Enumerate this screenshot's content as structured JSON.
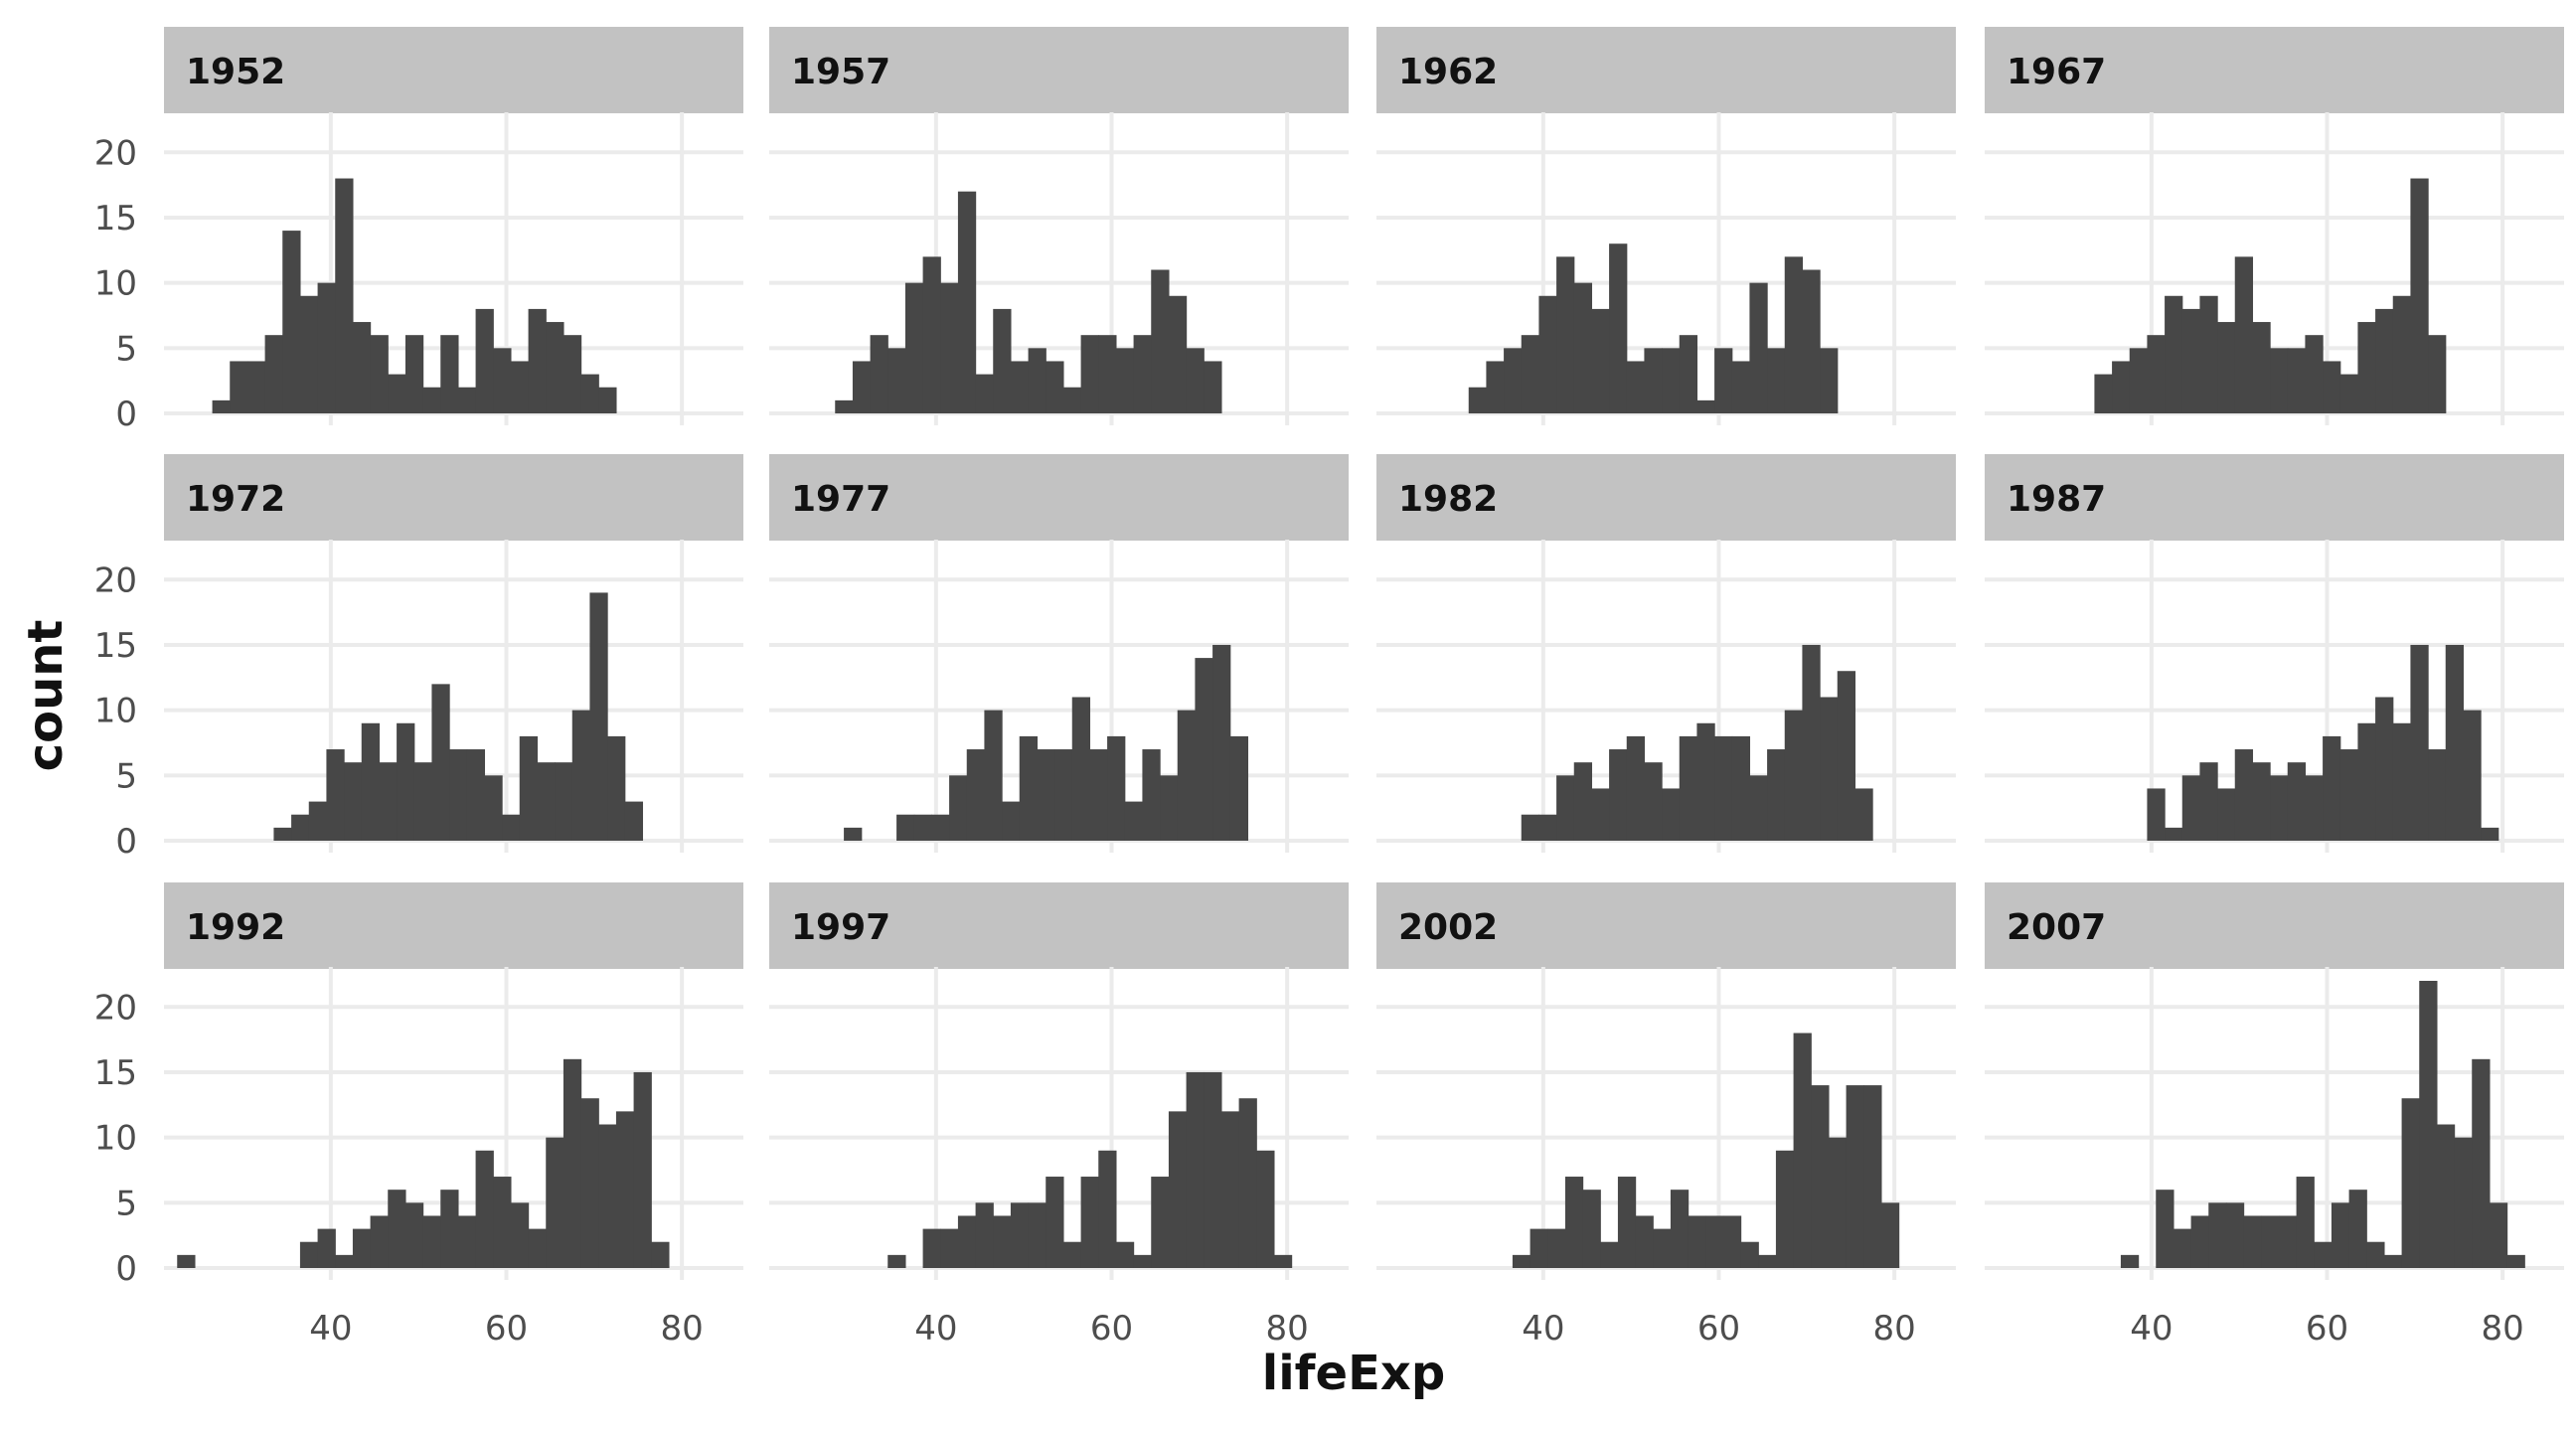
{
  "chart_data": {
    "type": "histogram",
    "facet_by": "year",
    "xlabel": "lifeExp",
    "ylabel": "count",
    "x_ticks": [
      40,
      60,
      80
    ],
    "y_ticks": [
      0,
      5,
      10,
      15,
      20
    ],
    "xlim": [
      21,
      87
    ],
    "ylim": [
      0,
      22
    ],
    "facet_ncol": 4,
    "grid": true,
    "theme": "minimal",
    "colors": {
      "bar": "#474747",
      "strip": "#c2c2c2",
      "grid": "#ebebeb",
      "strip_text": "#111111",
      "tick_text": "#4d4d4d"
    },
    "panels": [
      {
        "year": "1952",
        "bars": [
          {
            "x": 27.5,
            "count": 1
          },
          {
            "x": 29.5,
            "count": 4
          },
          {
            "x": 31.5,
            "count": 4
          },
          {
            "x": 33.5,
            "count": 6
          },
          {
            "x": 35.5,
            "count": 14
          },
          {
            "x": 37.5,
            "count": 9
          },
          {
            "x": 39.5,
            "count": 10
          },
          {
            "x": 41.5,
            "count": 18
          },
          {
            "x": 43.5,
            "count": 7
          },
          {
            "x": 45.5,
            "count": 6
          },
          {
            "x": 47.5,
            "count": 3
          },
          {
            "x": 49.5,
            "count": 6
          },
          {
            "x": 51.5,
            "count": 2
          },
          {
            "x": 53.5,
            "count": 6
          },
          {
            "x": 55.5,
            "count": 2
          },
          {
            "x": 57.5,
            "count": 8
          },
          {
            "x": 59.5,
            "count": 5
          },
          {
            "x": 61.5,
            "count": 4
          },
          {
            "x": 63.5,
            "count": 8
          },
          {
            "x": 65.5,
            "count": 7
          },
          {
            "x": 67.5,
            "count": 6
          },
          {
            "x": 69.5,
            "count": 3
          },
          {
            "x": 71.5,
            "count": 2
          }
        ]
      },
      {
        "year": "1957",
        "bars": [
          {
            "x": 29.5,
            "count": 1
          },
          {
            "x": 31.5,
            "count": 4
          },
          {
            "x": 33.5,
            "count": 6
          },
          {
            "x": 35.5,
            "count": 5
          },
          {
            "x": 37.5,
            "count": 10
          },
          {
            "x": 39.5,
            "count": 12
          },
          {
            "x": 41.5,
            "count": 10
          },
          {
            "x": 43.5,
            "count": 17
          },
          {
            "x": 45.5,
            "count": 3
          },
          {
            "x": 47.5,
            "count": 8
          },
          {
            "x": 49.5,
            "count": 4
          },
          {
            "x": 51.5,
            "count": 5
          },
          {
            "x": 53.5,
            "count": 4
          },
          {
            "x": 55.5,
            "count": 2
          },
          {
            "x": 57.5,
            "count": 6
          },
          {
            "x": 59.5,
            "count": 6
          },
          {
            "x": 61.5,
            "count": 5
          },
          {
            "x": 63.5,
            "count": 6
          },
          {
            "x": 65.5,
            "count": 11
          },
          {
            "x": 67.5,
            "count": 9
          },
          {
            "x": 69.5,
            "count": 5
          },
          {
            "x": 71.5,
            "count": 4
          }
        ]
      },
      {
        "year": "1962",
        "bars": [
          {
            "x": 32.5,
            "count": 2
          },
          {
            "x": 34.5,
            "count": 4
          },
          {
            "x": 36.5,
            "count": 5
          },
          {
            "x": 38.5,
            "count": 6
          },
          {
            "x": 40.5,
            "count": 9
          },
          {
            "x": 42.5,
            "count": 12
          },
          {
            "x": 44.5,
            "count": 10
          },
          {
            "x": 46.5,
            "count": 8
          },
          {
            "x": 48.5,
            "count": 13
          },
          {
            "x": 50.5,
            "count": 4
          },
          {
            "x": 52.5,
            "count": 5
          },
          {
            "x": 54.5,
            "count": 5
          },
          {
            "x": 56.5,
            "count": 6
          },
          {
            "x": 58.5,
            "count": 1
          },
          {
            "x": 60.5,
            "count": 5
          },
          {
            "x": 62.5,
            "count": 4
          },
          {
            "x": 64.5,
            "count": 10
          },
          {
            "x": 66.5,
            "count": 5
          },
          {
            "x": 68.5,
            "count": 12
          },
          {
            "x": 70.5,
            "count": 11
          },
          {
            "x": 72.5,
            "count": 5
          }
        ]
      },
      {
        "year": "1967",
        "bars": [
          {
            "x": 34.5,
            "count": 3
          },
          {
            "x": 36.5,
            "count": 4
          },
          {
            "x": 38.5,
            "count": 5
          },
          {
            "x": 40.5,
            "count": 6
          },
          {
            "x": 42.5,
            "count": 9
          },
          {
            "x": 44.5,
            "count": 8
          },
          {
            "x": 46.5,
            "count": 9
          },
          {
            "x": 48.5,
            "count": 7
          },
          {
            "x": 50.5,
            "count": 12
          },
          {
            "x": 52.5,
            "count": 7
          },
          {
            "x": 54.5,
            "count": 5
          },
          {
            "x": 56.5,
            "count": 5
          },
          {
            "x": 58.5,
            "count": 6
          },
          {
            "x": 60.5,
            "count": 4
          },
          {
            "x": 62.5,
            "count": 3
          },
          {
            "x": 64.5,
            "count": 7
          },
          {
            "x": 66.5,
            "count": 8
          },
          {
            "x": 68.5,
            "count": 9
          },
          {
            "x": 70.5,
            "count": 18
          },
          {
            "x": 72.5,
            "count": 6
          }
        ]
      },
      {
        "year": "1972",
        "bars": [
          {
            "x": 34.5,
            "count": 1
          },
          {
            "x": 36.5,
            "count": 2
          },
          {
            "x": 38.5,
            "count": 3
          },
          {
            "x": 40.5,
            "count": 7
          },
          {
            "x": 42.5,
            "count": 6
          },
          {
            "x": 44.5,
            "count": 9
          },
          {
            "x": 46.5,
            "count": 6
          },
          {
            "x": 48.5,
            "count": 9
          },
          {
            "x": 50.5,
            "count": 6
          },
          {
            "x": 52.5,
            "count": 12
          },
          {
            "x": 54.5,
            "count": 7
          },
          {
            "x": 56.5,
            "count": 7
          },
          {
            "x": 58.5,
            "count": 5
          },
          {
            "x": 60.5,
            "count": 2
          },
          {
            "x": 62.5,
            "count": 8
          },
          {
            "x": 64.5,
            "count": 6
          },
          {
            "x": 66.5,
            "count": 6
          },
          {
            "x": 68.5,
            "count": 10
          },
          {
            "x": 70.5,
            "count": 19
          },
          {
            "x": 72.5,
            "count": 8
          },
          {
            "x": 74.5,
            "count": 3
          }
        ]
      },
      {
        "year": "1977",
        "bars": [
          {
            "x": 30.5,
            "count": 1
          },
          {
            "x": 36.5,
            "count": 2
          },
          {
            "x": 38.5,
            "count": 2
          },
          {
            "x": 40.5,
            "count": 2
          },
          {
            "x": 42.5,
            "count": 5
          },
          {
            "x": 44.5,
            "count": 7
          },
          {
            "x": 46.5,
            "count": 10
          },
          {
            "x": 48.5,
            "count": 3
          },
          {
            "x": 50.5,
            "count": 8
          },
          {
            "x": 52.5,
            "count": 7
          },
          {
            "x": 54.5,
            "count": 7
          },
          {
            "x": 56.5,
            "count": 11
          },
          {
            "x": 58.5,
            "count": 7
          },
          {
            "x": 60.5,
            "count": 8
          },
          {
            "x": 62.5,
            "count": 3
          },
          {
            "x": 64.5,
            "count": 7
          },
          {
            "x": 66.5,
            "count": 5
          },
          {
            "x": 68.5,
            "count": 10
          },
          {
            "x": 70.5,
            "count": 14
          },
          {
            "x": 72.5,
            "count": 15
          },
          {
            "x": 74.5,
            "count": 8
          }
        ]
      },
      {
        "year": "1982",
        "bars": [
          {
            "x": 38.5,
            "count": 2
          },
          {
            "x": 40.5,
            "count": 2
          },
          {
            "x": 42.5,
            "count": 5
          },
          {
            "x": 44.5,
            "count": 6
          },
          {
            "x": 46.5,
            "count": 4
          },
          {
            "x": 48.5,
            "count": 7
          },
          {
            "x": 50.5,
            "count": 8
          },
          {
            "x": 52.5,
            "count": 6
          },
          {
            "x": 54.5,
            "count": 4
          },
          {
            "x": 56.5,
            "count": 8
          },
          {
            "x": 58.5,
            "count": 9
          },
          {
            "x": 60.5,
            "count": 8
          },
          {
            "x": 62.5,
            "count": 8
          },
          {
            "x": 64.5,
            "count": 5
          },
          {
            "x": 66.5,
            "count": 7
          },
          {
            "x": 68.5,
            "count": 10
          },
          {
            "x": 70.5,
            "count": 15
          },
          {
            "x": 72.5,
            "count": 11
          },
          {
            "x": 74.5,
            "count": 13
          },
          {
            "x": 76.5,
            "count": 4
          }
        ]
      },
      {
        "year": "1987",
        "bars": [
          {
            "x": 40.5,
            "count": 4
          },
          {
            "x": 42.5,
            "count": 1
          },
          {
            "x": 44.5,
            "count": 5
          },
          {
            "x": 46.5,
            "count": 6
          },
          {
            "x": 48.5,
            "count": 4
          },
          {
            "x": 50.5,
            "count": 7
          },
          {
            "x": 52.5,
            "count": 6
          },
          {
            "x": 54.5,
            "count": 5
          },
          {
            "x": 56.5,
            "count": 6
          },
          {
            "x": 58.5,
            "count": 5
          },
          {
            "x": 60.5,
            "count": 8
          },
          {
            "x": 62.5,
            "count": 7
          },
          {
            "x": 64.5,
            "count": 9
          },
          {
            "x": 66.5,
            "count": 11
          },
          {
            "x": 68.5,
            "count": 9
          },
          {
            "x": 70.5,
            "count": 15
          },
          {
            "x": 72.5,
            "count": 7
          },
          {
            "x": 74.5,
            "count": 15
          },
          {
            "x": 76.5,
            "count": 10
          },
          {
            "x": 78.5,
            "count": 1
          }
        ]
      },
      {
        "year": "1992",
        "bars": [
          {
            "x": 23.5,
            "count": 1
          },
          {
            "x": 37.5,
            "count": 2
          },
          {
            "x": 39.5,
            "count": 3
          },
          {
            "x": 41.5,
            "count": 1
          },
          {
            "x": 43.5,
            "count": 3
          },
          {
            "x": 45.5,
            "count": 4
          },
          {
            "x": 47.5,
            "count": 6
          },
          {
            "x": 49.5,
            "count": 5
          },
          {
            "x": 51.5,
            "count": 4
          },
          {
            "x": 53.5,
            "count": 6
          },
          {
            "x": 55.5,
            "count": 4
          },
          {
            "x": 57.5,
            "count": 9
          },
          {
            "x": 59.5,
            "count": 7
          },
          {
            "x": 61.5,
            "count": 5
          },
          {
            "x": 63.5,
            "count": 3
          },
          {
            "x": 65.5,
            "count": 10
          },
          {
            "x": 67.5,
            "count": 16
          },
          {
            "x": 69.5,
            "count": 13
          },
          {
            "x": 71.5,
            "count": 11
          },
          {
            "x": 73.5,
            "count": 12
          },
          {
            "x": 75.5,
            "count": 15
          },
          {
            "x": 77.5,
            "count": 2
          }
        ]
      },
      {
        "year": "1997",
        "bars": [
          {
            "x": 35.5,
            "count": 1
          },
          {
            "x": 39.5,
            "count": 3
          },
          {
            "x": 41.5,
            "count": 3
          },
          {
            "x": 43.5,
            "count": 4
          },
          {
            "x": 45.5,
            "count": 5
          },
          {
            "x": 47.5,
            "count": 4
          },
          {
            "x": 49.5,
            "count": 5
          },
          {
            "x": 51.5,
            "count": 5
          },
          {
            "x": 53.5,
            "count": 7
          },
          {
            "x": 55.5,
            "count": 2
          },
          {
            "x": 57.5,
            "count": 7
          },
          {
            "x": 59.5,
            "count": 9
          },
          {
            "x": 61.5,
            "count": 2
          },
          {
            "x": 63.5,
            "count": 1
          },
          {
            "x": 65.5,
            "count": 7
          },
          {
            "x": 67.5,
            "count": 12
          },
          {
            "x": 69.5,
            "count": 15
          },
          {
            "x": 71.5,
            "count": 15
          },
          {
            "x": 73.5,
            "count": 12
          },
          {
            "x": 75.5,
            "count": 13
          },
          {
            "x": 77.5,
            "count": 9
          },
          {
            "x": 79.5,
            "count": 1
          }
        ]
      },
      {
        "year": "2002",
        "bars": [
          {
            "x": 37.5,
            "count": 1
          },
          {
            "x": 39.5,
            "count": 3
          },
          {
            "x": 41.5,
            "count": 3
          },
          {
            "x": 43.5,
            "count": 7
          },
          {
            "x": 45.5,
            "count": 6
          },
          {
            "x": 47.5,
            "count": 2
          },
          {
            "x": 49.5,
            "count": 7
          },
          {
            "x": 51.5,
            "count": 4
          },
          {
            "x": 53.5,
            "count": 3
          },
          {
            "x": 55.5,
            "count": 6
          },
          {
            "x": 57.5,
            "count": 4
          },
          {
            "x": 59.5,
            "count": 4
          },
          {
            "x": 61.5,
            "count": 4
          },
          {
            "x": 63.5,
            "count": 2
          },
          {
            "x": 65.5,
            "count": 1
          },
          {
            "x": 67.5,
            "count": 9
          },
          {
            "x": 69.5,
            "count": 18
          },
          {
            "x": 71.5,
            "count": 14
          },
          {
            "x": 73.5,
            "count": 10
          },
          {
            "x": 75.5,
            "count": 14
          },
          {
            "x": 77.5,
            "count": 14
          },
          {
            "x": 79.5,
            "count": 5
          }
        ]
      },
      {
        "year": "2007",
        "bars": [
          {
            "x": 37.5,
            "count": 1
          },
          {
            "x": 41.5,
            "count": 6
          },
          {
            "x": 43.5,
            "count": 3
          },
          {
            "x": 45.5,
            "count": 4
          },
          {
            "x": 47.5,
            "count": 5
          },
          {
            "x": 49.5,
            "count": 5
          },
          {
            "x": 51.5,
            "count": 4
          },
          {
            "x": 53.5,
            "count": 4
          },
          {
            "x": 55.5,
            "count": 4
          },
          {
            "x": 57.5,
            "count": 7
          },
          {
            "x": 59.5,
            "count": 2
          },
          {
            "x": 61.5,
            "count": 5
          },
          {
            "x": 63.5,
            "count": 6
          },
          {
            "x": 65.5,
            "count": 2
          },
          {
            "x": 67.5,
            "count": 1
          },
          {
            "x": 69.5,
            "count": 13
          },
          {
            "x": 71.5,
            "count": 22
          },
          {
            "x": 73.5,
            "count": 11
          },
          {
            "x": 75.5,
            "count": 10
          },
          {
            "x": 77.5,
            "count": 16
          },
          {
            "x": 79.5,
            "count": 5
          },
          {
            "x": 81.5,
            "count": 1
          }
        ]
      }
    ]
  }
}
